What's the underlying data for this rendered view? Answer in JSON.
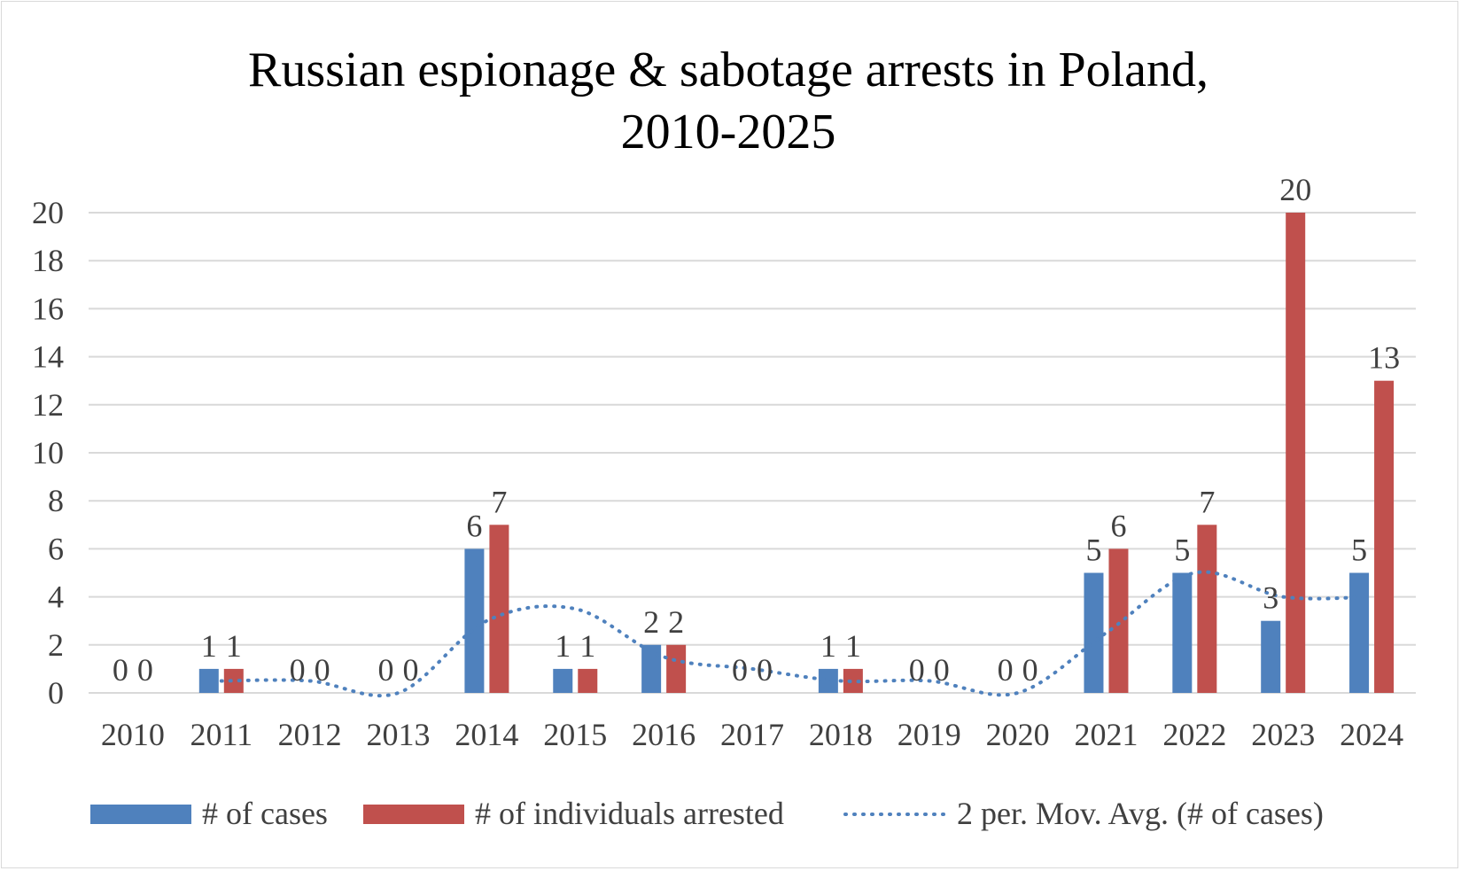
{
  "chart_data": {
    "type": "bar",
    "title_lines": [
      "Russian espionage & sabotage arrests in Poland,",
      "2010-2025"
    ],
    "categories": [
      "2010",
      "2011",
      "2012",
      "2013",
      "2014",
      "2015",
      "2016",
      "2017",
      "2018",
      "2019",
      "2020",
      "2021",
      "2022",
      "2023",
      "2024"
    ],
    "series": [
      {
        "name": "# of cases",
        "type": "bar",
        "color": "#4f81bd",
        "values": [
          0,
          1,
          0,
          0,
          6,
          1,
          2,
          0,
          1,
          0,
          0,
          5,
          5,
          3,
          5
        ]
      },
      {
        "name": "# of individuals arrested",
        "type": "bar",
        "color": "#c0504d",
        "values": [
          0,
          1,
          0,
          0,
          7,
          1,
          2,
          0,
          1,
          0,
          0,
          6,
          7,
          20,
          13
        ]
      }
    ],
    "trendline": {
      "name": "2 per. Mov. Avg. (# of cases)",
      "type": "line",
      "style": "dotted",
      "color": "#4f81bd",
      "values": [
        null,
        0.5,
        0.5,
        0,
        3,
        3.5,
        1.5,
        1,
        0.5,
        0.5,
        0,
        2.5,
        5,
        4,
        4
      ]
    },
    "yticks": [
      0,
      2,
      4,
      6,
      8,
      10,
      12,
      14,
      16,
      18,
      20
    ],
    "ylim": [
      0,
      20
    ],
    "grid": true,
    "legend_position": "bottom"
  }
}
